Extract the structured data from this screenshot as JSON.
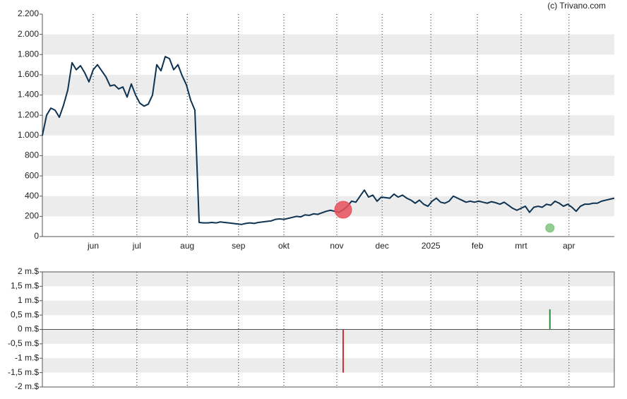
{
  "source": "(c) Trivano.com",
  "chart_data": [
    {
      "type": "line",
      "xlim": [
        0,
        135
      ],
      "xticks": [
        {
          "value": 12,
          "label": "jun"
        },
        {
          "value": 22.3,
          "label": "jul"
        },
        {
          "value": 34.2,
          "label": "aug"
        },
        {
          "value": 46.3,
          "label": "sep"
        },
        {
          "value": 57,
          "label": "okt"
        },
        {
          "value": 69.5,
          "label": "nov"
        },
        {
          "value": 80.2,
          "label": "dec"
        },
        {
          "value": 91.7,
          "label": "2025"
        },
        {
          "value": 102.7,
          "label": "feb"
        },
        {
          "value": 113,
          "label": "mrt"
        },
        {
          "value": 124.3,
          "label": "apr"
        }
      ],
      "ylim": [
        0,
        2200
      ],
      "yticks": [
        0,
        200,
        400,
        600,
        800,
        {
          "value": 1000,
          "label": "1.000"
        },
        {
          "value": 1200,
          "label": "1.200"
        },
        {
          "value": 1400,
          "label": "1.400"
        },
        {
          "value": 1600,
          "label": "1.600"
        },
        {
          "value": 1800,
          "label": "1.800"
        },
        {
          "value": 2000,
          "label": "2.000"
        },
        {
          "value": 2200,
          "label": "2.200"
        }
      ],
      "grid": true,
      "series": [
        {
          "color": "#0e3352",
          "values": [
            1000,
            1200,
            1270,
            1250,
            1180,
            1300,
            1450,
            1720,
            1650,
            1690,
            1620,
            1530,
            1650,
            1700,
            1640,
            1580,
            1490,
            1500,
            1460,
            1480,
            1380,
            1510,
            1400,
            1320,
            1290,
            1310,
            1400,
            1700,
            1640,
            1780,
            1760,
            1650,
            1700,
            1590,
            1500,
            1350,
            1250,
            140,
            135,
            135,
            140,
            135,
            145,
            140,
            135,
            130,
            125,
            120,
            130,
            135,
            130,
            140,
            145,
            150,
            155,
            170,
            175,
            170,
            180,
            190,
            200,
            195,
            215,
            210,
            225,
            220,
            235,
            250,
            260,
            250,
            240,
            265,
            300,
            350,
            340,
            400,
            460,
            390,
            410,
            350,
            390,
            385,
            380,
            420,
            390,
            410,
            380,
            360,
            330,
            360,
            320,
            300,
            350,
            380,
            340,
            330,
            350,
            400,
            380,
            360,
            340,
            350,
            340,
            350,
            340,
            330,
            345,
            335,
            320,
            340,
            310,
            280,
            260,
            280,
            300,
            240,
            290,
            300,
            290,
            320,
            310,
            350,
            330,
            300,
            320,
            290,
            250,
            300,
            320,
            320,
            330,
            330,
            350,
            360,
            370,
            380
          ]
        }
      ],
      "markers": [
        {
          "x": 71,
          "value": 265,
          "color": "#e8505b"
        },
        {
          "x": 119.8,
          "value": 85,
          "color": "#7fc47f"
        }
      ]
    },
    {
      "type": "bar",
      "xlim": [
        0,
        135
      ],
      "xticks": [
        {
          "value": 12,
          "label": "jun"
        },
        {
          "value": 22.3,
          "label": "jul"
        },
        {
          "value": 34.2,
          "label": "aug"
        },
        {
          "value": 46.3,
          "label": "sep"
        },
        {
          "value": 57,
          "label": "okt"
        },
        {
          "value": 69.5,
          "label": "nov"
        },
        {
          "value": 80.2,
          "label": "dec"
        },
        {
          "value": 91.7,
          "label": "2025"
        },
        {
          "value": 102.7,
          "label": "feb"
        },
        {
          "value": 113,
          "label": "mrt"
        },
        {
          "value": 124.3,
          "label": "apr"
        }
      ],
      "ylim": [
        -2,
        2
      ],
      "yticks": [
        {
          "value": -2,
          "label": "-2 m.$"
        },
        {
          "value": -1.5,
          "label": "-1,5 m.$"
        },
        {
          "value": -1,
          "label": "-1 m.$"
        },
        {
          "value": -0.5,
          "label": "-0,5 m.$"
        },
        {
          "value": 0,
          "label": "0 m.$"
        },
        {
          "value": 0.5,
          "label": "0,5 m.$"
        },
        {
          "value": 1,
          "label": "1 m.$"
        },
        {
          "value": 1.5,
          "label": "1,5 m.$"
        },
        {
          "value": 2,
          "label": "2 m.$"
        }
      ],
      "grid": true,
      "x": [
        71,
        119.8
      ],
      "values": [
        -1.5,
        0.7
      ],
      "colors": [
        "#d0303c",
        "#2e8b3e"
      ]
    }
  ]
}
